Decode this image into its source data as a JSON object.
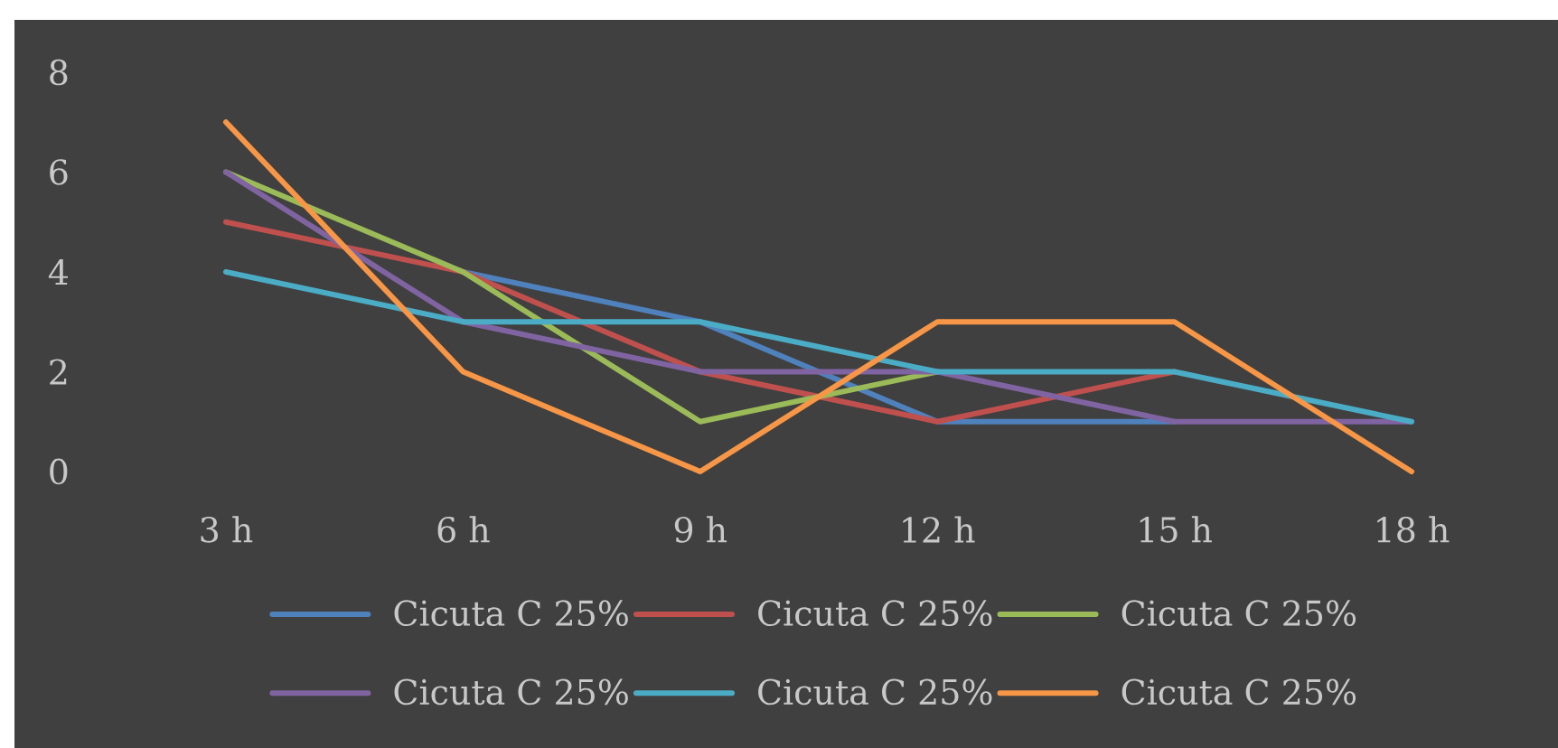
{
  "chart_data": {
    "type": "line",
    "categories": [
      "3 h",
      "6 h",
      "9 h",
      "12 h",
      "15 h",
      "18 h"
    ],
    "ylim": [
      0,
      8
    ],
    "yticks": [
      0,
      2,
      4,
      6,
      8
    ],
    "legend": "bottom",
    "series": [
      {
        "name": "Cicuta C 25%",
        "color": "#4f81bd",
        "values": [
          null,
          4,
          3,
          1,
          1,
          null
        ]
      },
      {
        "name": "Cicuta C 25%",
        "color": "#c0504d",
        "values": [
          5,
          4,
          2,
          1,
          2,
          null
        ]
      },
      {
        "name": "Cicuta C 25%",
        "color": "#9bbb59",
        "values": [
          6,
          4,
          1,
          2,
          null,
          null
        ]
      },
      {
        "name": "Cicuta C 25%",
        "color": "#8064a2",
        "values": [
          6,
          3,
          2,
          2,
          1,
          1
        ]
      },
      {
        "name": "Cicuta C 25%",
        "color": "#4bacc6",
        "values": [
          4,
          3,
          3,
          2,
          2,
          1
        ]
      },
      {
        "name": "Cicuta C 25%",
        "color": "#f79646",
        "values": [
          7,
          2,
          0,
          3,
          3,
          0
        ]
      }
    ]
  }
}
